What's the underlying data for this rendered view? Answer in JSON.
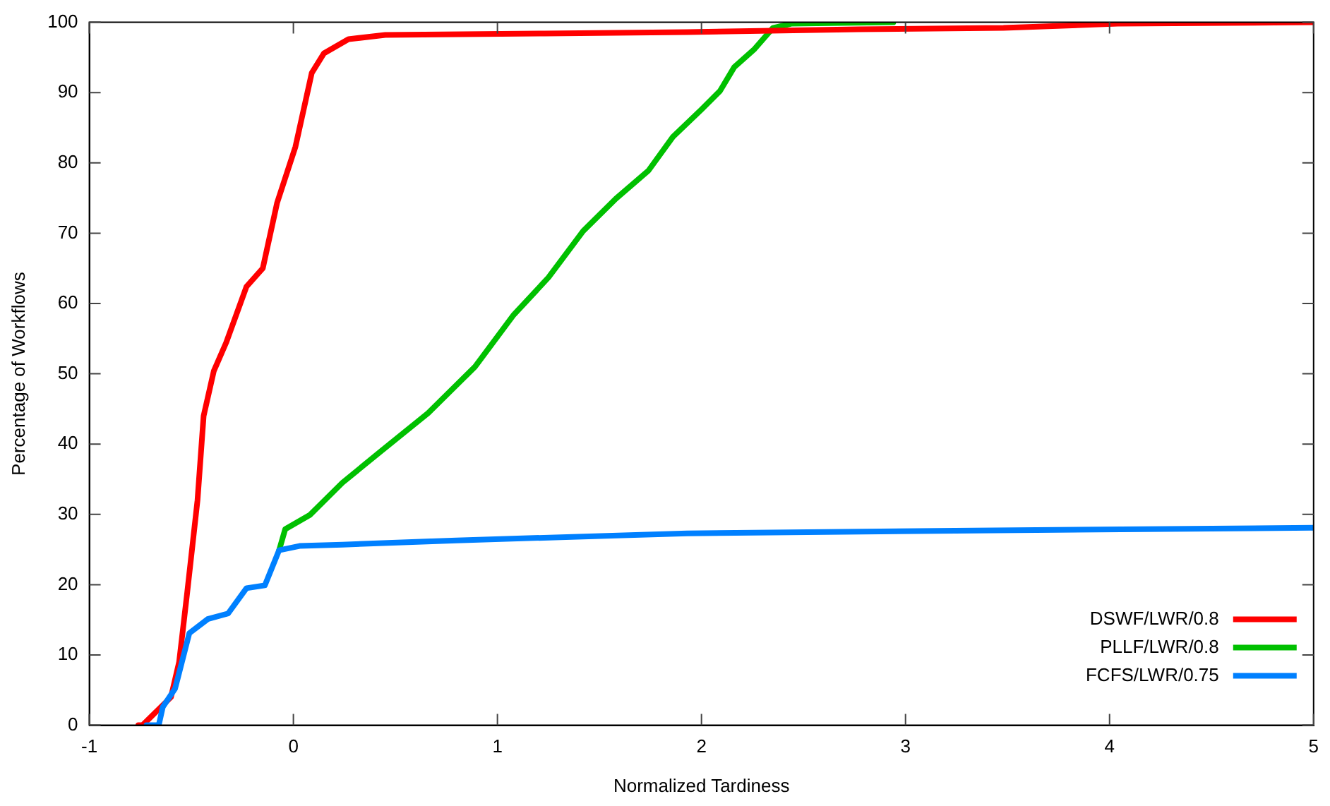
{
  "chart_data": {
    "type": "line",
    "xlabel": "Normalized Tardiness",
    "ylabel": "Percentage of Workflows",
    "xlim": [
      -1,
      5
    ],
    "xticks": [
      -1,
      0,
      1,
      2,
      3,
      4,
      5
    ],
    "ylim": [
      0,
      100
    ],
    "yticks": [
      0,
      10,
      20,
      30,
      40,
      50,
      60,
      70,
      80,
      90,
      100
    ],
    "grid": false,
    "legend": "bottom right",
    "marker": "none",
    "line_style": "solid",
    "series": [
      {
        "name": "DSWF/LWR/0.8",
        "color": "#ff0000",
        "x": [
          -0.76,
          -0.74,
          -0.6,
          -0.56,
          -0.52,
          -0.47,
          -0.44,
          -0.39,
          -0.33,
          -0.23,
          -0.15,
          -0.08,
          0.01,
          0.09,
          0.15,
          0.27,
          0.45,
          1.23,
          1.93,
          2.77,
          3.48,
          4.04,
          5
        ],
        "values": [
          0,
          0,
          4,
          9,
          19,
          32,
          44,
          50.4,
          54.4,
          62.4,
          65,
          74.3,
          82.3,
          92.8,
          95.6,
          97.6,
          98.2,
          98.4,
          98.6,
          99,
          99.2,
          99.8,
          100
        ]
      },
      {
        "name": "PLLF/LWR/0.8",
        "color": "#00c000",
        "x": [
          -0.07,
          -0.04,
          0.08,
          0.24,
          0.43,
          0.66,
          0.89,
          1.08,
          1.25,
          1.42,
          1.58,
          1.74,
          1.86,
          2.0,
          2.09,
          2.16,
          2.26,
          2.35,
          2.44,
          2.94
        ],
        "values": [
          24.9,
          27.9,
          29.9,
          34.5,
          39,
          44.4,
          51,
          58.4,
          63.7,
          70.3,
          74.9,
          78.9,
          83.7,
          87.6,
          90.2,
          93.6,
          96.2,
          99.2,
          99.8,
          100
        ]
      },
      {
        "name": "FCFS/LWR/0.75",
        "color": "#0080ff",
        "x": [
          -0.72,
          -0.66,
          -0.64,
          -0.58,
          -0.51,
          -0.42,
          -0.32,
          -0.23,
          -0.14,
          -0.07,
          0.03,
          0.24,
          0.8,
          1.93,
          3.34,
          5
        ],
        "values": [
          0,
          0,
          2.6,
          5.2,
          13.1,
          15.1,
          15.9,
          19.5,
          19.9,
          24.9,
          25.5,
          25.7,
          26.3,
          27.3,
          27.7,
          28.1
        ]
      }
    ]
  }
}
